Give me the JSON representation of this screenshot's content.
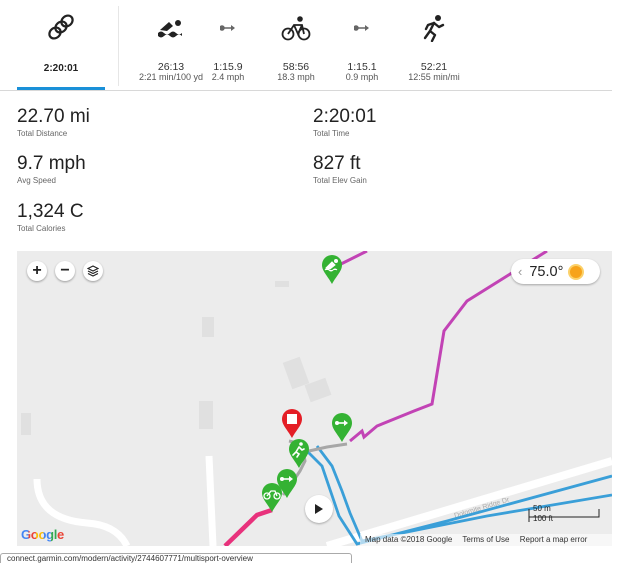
{
  "tabs": [
    {
      "id": "multisport",
      "icon": "multisport-rings-icon",
      "line1": "2:20:01",
      "line2": "",
      "active": true
    },
    {
      "id": "swim",
      "icon": "swim-icon",
      "line1": "26:13",
      "line2": "2:21 min/100 yd"
    },
    {
      "id": "transition1",
      "icon": "transition-icon",
      "line1": "1:15.9",
      "line2": "2.4 mph"
    },
    {
      "id": "bike",
      "icon": "bike-icon",
      "line1": "58:56",
      "line2": "18.3 mph"
    },
    {
      "id": "transition2",
      "icon": "transition-icon",
      "line1": "1:15.1",
      "line2": "0.9 mph"
    },
    {
      "id": "run",
      "icon": "run-icon",
      "line1": "52:21",
      "line2": "12:55 min/mi"
    }
  ],
  "stats": {
    "distance": {
      "value": "22.70 mi",
      "label": "Total Distance"
    },
    "time": {
      "value": "2:20:01",
      "label": "Total Time"
    },
    "speed": {
      "value": "9.7 mph",
      "label": "Avg Speed"
    },
    "elev": {
      "value": "827 ft",
      "label": "Total Elev Gain"
    },
    "calories": {
      "value": "1,324 C",
      "label": "Total Calories"
    }
  },
  "map": {
    "zoom_in": "+",
    "zoom_out": "−",
    "weather_chevron": "‹",
    "temperature": "75.0°",
    "google_logo": "Google",
    "attribution": {
      "data": "Map data ©2018 Google",
      "terms": "Terms of Use",
      "report": "Report a map error"
    },
    "scale": {
      "metric": "50 m",
      "imperial": "100 ft"
    },
    "road_label": "Dolomite Ridge Dr"
  },
  "colors": {
    "accent": "#1a90d8",
    "swim": "#c243b5",
    "bike": "#e8327c",
    "run": "#3a9fd8",
    "marker": "#34b233",
    "end": "#e41e26"
  },
  "status_bar": "connect.garmin.com/modern/activity/2744607771/multisport-overview"
}
